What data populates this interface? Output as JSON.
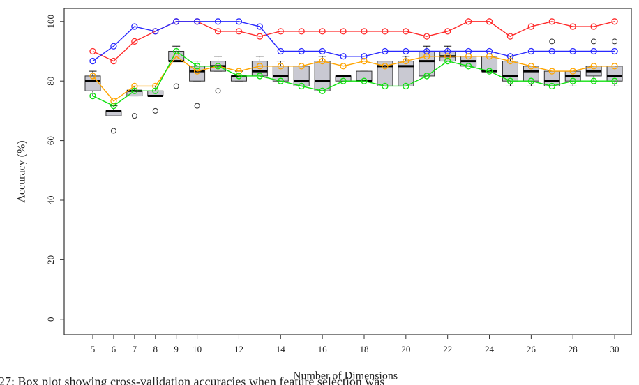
{
  "chart_data": {
    "type": "box",
    "xlabel": "Number of Dimensions",
    "ylabel": "Accuracy (%)",
    "caption": "27: Box plot showing cross-validation accuracies when feature selection was",
    "xlim": [
      3.63,
      30.8
    ],
    "ylim": [
      -5.2,
      104.4
    ],
    "xticks": [
      5,
      6,
      7,
      8,
      9,
      10,
      12,
      14,
      16,
      18,
      20,
      22,
      24,
      26,
      28,
      30
    ],
    "yticks": [
      0,
      20,
      40,
      60,
      80,
      100
    ],
    "box_color": "#c9c9d2",
    "x": [
      5,
      6,
      7,
      8,
      9,
      10,
      11,
      12,
      13,
      14,
      15,
      16,
      17,
      18,
      19,
      20,
      21,
      22,
      23,
      24,
      25,
      26,
      27,
      28,
      29,
      30
    ],
    "boxes": [
      {
        "low": 75,
        "q1": 76.7,
        "median": 80,
        "q3": 81.7,
        "high": 83.3
      },
      {
        "low": 68.3,
        "q1": 68.3,
        "median": 70,
        "q3": 70,
        "high": 71.7
      },
      {
        "low": 75,
        "q1": 75,
        "median": 76.7,
        "q3": 76.7,
        "high": 78.3
      },
      {
        "low": 75,
        "q1": 75,
        "median": 75,
        "q3": 76.7,
        "high": 78.3
      },
      {
        "low": 86.7,
        "q1": 86.7,
        "median": 86.7,
        "q3": 90,
        "high": 91.7
      },
      {
        "low": 80,
        "q1": 80,
        "median": 83.3,
        "q3": 85,
        "high": 86.7
      },
      {
        "low": 83.3,
        "q1": 83.3,
        "median": 85,
        "q3": 86.7,
        "high": 88.3
      },
      {
        "low": 80,
        "q1": 80,
        "median": 81.7,
        "q3": 81.7,
        "high": 83.3
      },
      {
        "low": 81.7,
        "q1": 81.7,
        "median": 83.3,
        "q3": 86.7,
        "high": 88.3
      },
      {
        "low": 80,
        "q1": 80,
        "median": 81.7,
        "q3": 85,
        "high": 86.7
      },
      {
        "low": 78.3,
        "q1": 78.3,
        "median": 80,
        "q3": 85,
        "high": 85
      },
      {
        "low": 76.7,
        "q1": 76.7,
        "median": 80,
        "q3": 86.7,
        "high": 88.3
      },
      {
        "low": 80,
        "q1": 80,
        "median": 81.7,
        "q3": 81.7,
        "high": 81.7
      },
      {
        "low": 80,
        "q1": 80,
        "median": 80,
        "q3": 83.3,
        "high": 83.3
      },
      {
        "low": 78.3,
        "q1": 78.3,
        "median": 85,
        "q3": 86.7,
        "high": 86.7
      },
      {
        "low": 78.3,
        "q1": 78.3,
        "median": 85,
        "q3": 86.7,
        "high": 88.3
      },
      {
        "low": 81.7,
        "q1": 81.7,
        "median": 86.7,
        "q3": 90,
        "high": 91.7
      },
      {
        "low": 86.7,
        "q1": 86.7,
        "median": 88.3,
        "q3": 90,
        "high": 91.7
      },
      {
        "low": 85,
        "q1": 85,
        "median": 86.7,
        "q3": 88.3,
        "high": 88.3
      },
      {
        "low": 83.3,
        "q1": 83.3,
        "median": 83.3,
        "q3": 88.3,
        "high": 88.3
      },
      {
        "low": 78.3,
        "q1": 80,
        "median": 81.7,
        "q3": 86.7,
        "high": 88.3
      },
      {
        "low": 78.3,
        "q1": 80,
        "median": 83.3,
        "q3": 85,
        "high": 85
      },
      {
        "low": 78.3,
        "q1": 78.3,
        "median": 80,
        "q3": 83.3,
        "high": 83.3
      },
      {
        "low": 78.3,
        "q1": 80,
        "median": 81.7,
        "q3": 83.3,
        "high": 83.3
      },
      {
        "low": 80,
        "q1": 81.7,
        "median": 83.3,
        "q3": 85,
        "high": 85
      },
      {
        "low": 78.3,
        "q1": 80,
        "median": 81.7,
        "q3": 85,
        "high": 85
      }
    ],
    "outliers": [
      {
        "x": 6,
        "y": 63.3
      },
      {
        "x": 7,
        "y": 68.3
      },
      {
        "x": 8,
        "y": 70
      },
      {
        "x": 9,
        "y": 78.3
      },
      {
        "x": 10,
        "y": 71.7
      },
      {
        "x": 11,
        "y": 76.7
      },
      {
        "x": 27,
        "y": 93.3
      },
      {
        "x": 29,
        "y": 93.3
      },
      {
        "x": 30,
        "y": 93.3
      }
    ],
    "series": [
      {
        "color": "#ff2a2a",
        "values": [
          90,
          86.7,
          93.3,
          96.7,
          100,
          100,
          96.7,
          96.7,
          95,
          96.7,
          96.7,
          96.7,
          96.7,
          96.7,
          96.7,
          96.7,
          95,
          96.7,
          100,
          100,
          95,
          98.3,
          100,
          98.3,
          98.3,
          100
        ]
      },
      {
        "color": "#2a2aff",
        "values": [
          86.7,
          91.7,
          98.3,
          96.7,
          100,
          100,
          100,
          100,
          98.3,
          90,
          90,
          90,
          88.3,
          88.3,
          90,
          90,
          90,
          90,
          90,
          90,
          88.3,
          90,
          90,
          90,
          90,
          90
        ]
      },
      {
        "color": "#ffa500",
        "values": [
          81.7,
          73.3,
          78.3,
          78.3,
          88.3,
          83.3,
          85,
          83.3,
          85,
          85,
          85,
          86.7,
          85,
          86.7,
          85,
          86.7,
          88.3,
          88.3,
          88.3,
          88.3,
          86.7,
          85,
          83.3,
          83.3,
          85,
          85
        ]
      },
      {
        "color": "#10e010",
        "values": [
          75,
          71.7,
          76.7,
          76.7,
          90,
          85,
          85,
          81.7,
          81.7,
          80,
          78.3,
          76.7,
          80,
          80,
          78.3,
          78.3,
          81.7,
          86.7,
          85,
          83.3,
          80,
          80,
          78.3,
          80,
          80,
          80
        ]
      }
    ]
  }
}
